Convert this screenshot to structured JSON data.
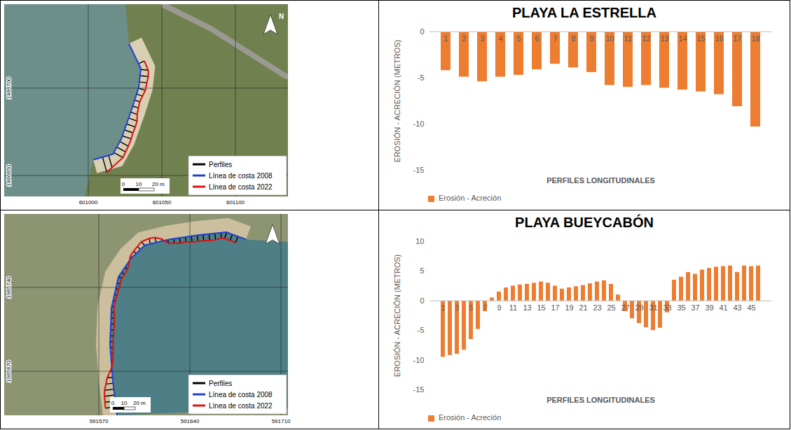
{
  "chart_data": [
    {
      "type": "bar",
      "title": "PLAYA LA ESTRELLA",
      "x_label": "PERFILES LONGITUDINALES",
      "y_label": "EROSIÓN - ACRECIÓN (METROS)",
      "categories": [
        "1",
        "2",
        "3",
        "4",
        "5",
        "6",
        "7",
        "8",
        "9",
        "10",
        "11",
        "12",
        "13",
        "14",
        "15",
        "16",
        "17",
        "18"
      ],
      "series": [
        {
          "name": "Erosión - Acreción",
          "color": "#ed7d31",
          "values": [
            -4.2,
            -4.9,
            -5.4,
            -4.9,
            -4.7,
            -4.1,
            -3.5,
            -3.9,
            -4.4,
            -5.8,
            -6.0,
            -5.8,
            -6.1,
            -6.3,
            -6.5,
            -6.8,
            -8.1,
            -10.3
          ]
        }
      ],
      "ylim": [
        -15,
        0
      ],
      "yticks": [
        -15,
        -10,
        -5,
        0
      ],
      "legend": "bottom"
    },
    {
      "type": "bar",
      "title": "PLAYA BUEYCABÓN",
      "x_label": "PERFILES LONGITUDINALES",
      "y_label": "EROSIÓN - ACRECIÓN (METROS)",
      "categories": [
        "1",
        null,
        "3",
        null,
        "5",
        null,
        "7",
        null,
        "9",
        null,
        "11",
        null,
        "13",
        null,
        "15",
        null,
        "17",
        null,
        "19",
        null,
        "21",
        null,
        "23",
        null,
        "25",
        null,
        "27",
        null,
        "29",
        null,
        "31",
        null,
        "33",
        null,
        "35",
        null,
        "37",
        null,
        "39",
        null,
        "41",
        null,
        "43",
        null,
        "45",
        null
      ],
      "series": [
        {
          "name": "Erosión - Acreción",
          "color": "#ed7d31",
          "values": [
            -9.5,
            -9.2,
            -9.0,
            -8.3,
            -6.5,
            -4.8,
            -1.8,
            0.5,
            1.5,
            2.2,
            2.5,
            2.7,
            2.8,
            3.0,
            3.2,
            3.0,
            2.5,
            2.0,
            2.2,
            2.4,
            2.6,
            2.9,
            3.2,
            3.4,
            2.8,
            1.0,
            -1.8,
            -3.0,
            -3.8,
            -4.5,
            -5.0,
            -4.6,
            -2.0,
            3.5,
            4.0,
            4.8,
            4.5,
            5.2,
            5.5,
            5.7,
            5.8,
            5.9,
            4.8,
            5.9,
            5.8,
            5.9
          ]
        }
      ],
      "ylim": [
        -15,
        10
      ],
      "yticks": [
        -15,
        -10,
        -5,
        0,
        5,
        10
      ],
      "legend": "bottom"
    }
  ],
  "maps": [
    {
      "x_labels": [
        "601000",
        "601050",
        "601100"
      ],
      "y_labels": [
        "1466700",
        "1466650"
      ],
      "legend_entries": [
        {
          "label": "Perfiles",
          "color": "#000000"
        },
        {
          "label": "Línea de costa 2008",
          "color": "#1f3fcf"
        },
        {
          "label": "Línea de costa 2022",
          "color": "#e01010"
        }
      ],
      "scale_bar": [
        "0",
        "10",
        "20 m"
      ],
      "north": "N"
    },
    {
      "x_labels": [
        "591570",
        "591640",
        "591710"
      ],
      "y_labels": [
        "1965740",
        "1965670"
      ],
      "legend_entries": [
        {
          "label": "Perfiles",
          "color": "#000000"
        },
        {
          "label": "Línea de costa 2008",
          "color": "#1f3fcf"
        },
        {
          "label": "Línea de costa 2022",
          "color": "#e01010"
        }
      ],
      "scale_bar": [
        "0",
        "10",
        "20 m"
      ]
    }
  ]
}
